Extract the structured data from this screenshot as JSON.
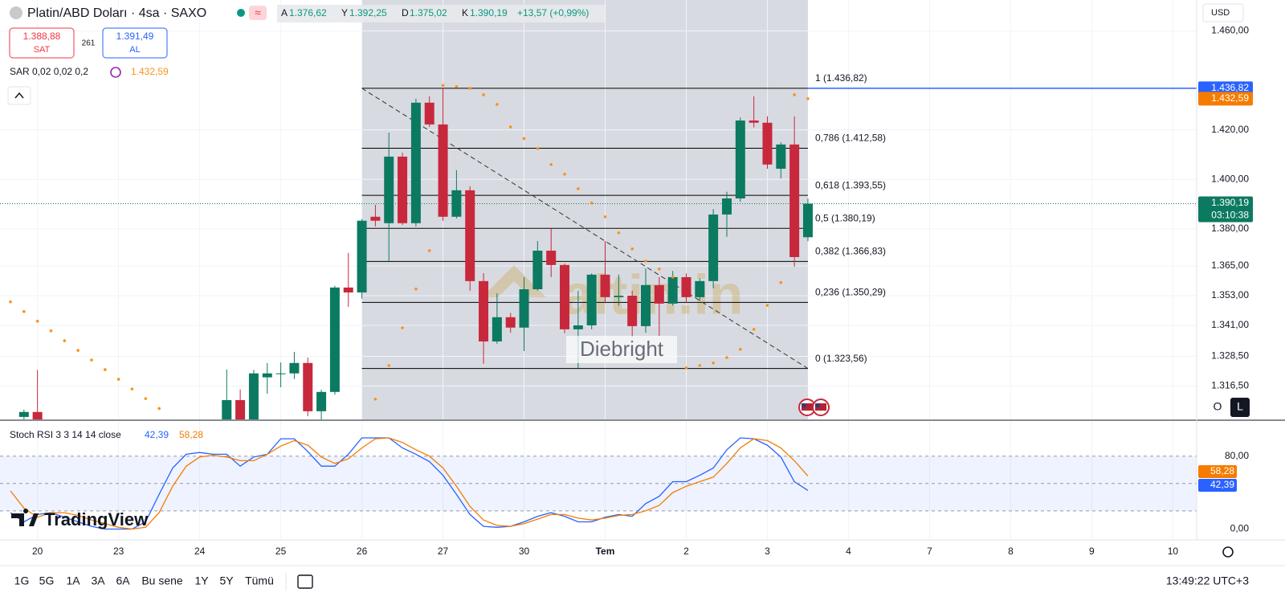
{
  "header": {
    "title": "Platin/ABD Doları · 4sa · SAXO",
    "ohlc": [
      {
        "key": "A",
        "value": "1.376,62"
      },
      {
        "key": "Y",
        "value": "1.392,25"
      },
      {
        "key": "D",
        "value": "1.375,02"
      },
      {
        "key": "K",
        "value": "1.390,19"
      }
    ],
    "change": "+13,57 (+0,99%)",
    "sell_price": "1.388,88",
    "sell_label": "SAT",
    "spread": "261",
    "buy_price": "1.391,49",
    "buy_label": "AL",
    "sar_title": "SAR 0,02 0,02 0,2",
    "sar_value": "1.432,59",
    "currency": "USD",
    "watermark": "altin.in",
    "author": "Diebright",
    "logo": "TradingView",
    "buttons": [
      "O",
      "L"
    ]
  },
  "toolbar": {
    "ranges": [
      "1G",
      "5G",
      "1A",
      "3A",
      "6A",
      "Bu sene",
      "1Y",
      "5Y",
      "Tümü"
    ],
    "time": "13:49:22 UTC+3"
  },
  "chart_data": [
    {
      "type": "candlestick",
      "colors": {
        "up": "#0c7a60",
        "down": "#c8283c"
      },
      "x": [
        1,
        2,
        16,
        17,
        18,
        19,
        20,
        21,
        22,
        23,
        24,
        25,
        26,
        27,
        28,
        29,
        30,
        31,
        32,
        33,
        34,
        35,
        36,
        37,
        38,
        39,
        40,
        41,
        42,
        43,
        44,
        45,
        46,
        47,
        48,
        49,
        50,
        51,
        52,
        53,
        54,
        55,
        56,
        57,
        58,
        59
      ],
      "open": [
        1304,
        1306,
        1300,
        1310.8,
        1303,
        1320,
        1321.3,
        1321.6,
        1325.8,
        1306.3,
        1314.1,
        1356.3,
        1354.3,
        1384.9,
        1382.3,
        1409.2,
        1382.3,
        1431,
        1422.2,
        1384.9,
        1395.6,
        1358.9,
        1334.5,
        1344.3,
        1340.1,
        1355.6,
        1371.2,
        1365.4,
        1339.4,
        1341,
        1361.5,
        1352.4,
        1353,
        1340.7,
        1357.3,
        1349.8,
        1360.5,
        1352.4,
        1358.9,
        1385.8,
        1392.3,
        1423.8,
        1422.9,
        1404.3,
        1414.1,
        1376.62
      ],
      "high": [
        1307,
        1323,
        1323.2,
        1315.1,
        1323,
        1325.8,
        1326,
        1330.3,
        1328,
        1315,
        1357,
        1370.3,
        1384,
        1389.7,
        1418.9,
        1410.8,
        1432.6,
        1433.6,
        1436.8,
        1403.7,
        1397.2,
        1362.1,
        1354,
        1346,
        1360.5,
        1375.1,
        1380,
        1366,
        1355,
        1362,
        1375.1,
        1361.5,
        1355,
        1364,
        1360.5,
        1363,
        1362,
        1360,
        1388,
        1395,
        1425,
        1433.6,
        1425.5,
        1415,
        1425.5,
        1392.25
      ],
      "low": [
        1300,
        1300,
        1298,
        1298,
        1301,
        1313.4,
        1316,
        1319.3,
        1304.3,
        1303,
        1313,
        1348.5,
        1351.8,
        1381,
        1367,
        1381.6,
        1381,
        1421.2,
        1383.3,
        1384.2,
        1355,
        1325.5,
        1333.6,
        1338,
        1330.6,
        1355,
        1360.5,
        1337.8,
        1323.8,
        1339.4,
        1350,
        1349,
        1336.2,
        1338,
        1336.8,
        1349,
        1350,
        1351,
        1356,
        1376.8,
        1391,
        1421,
        1404.3,
        1400.4,
        1364.7,
        1375.02
      ],
      "close": [
        1306,
        1302,
        1310.8,
        1302,
        1321.6,
        1321.6,
        1321.6,
        1325.8,
        1306.3,
        1314.1,
        1356.3,
        1354.3,
        1383.3,
        1383.3,
        1409.2,
        1382.3,
        1431,
        1422.2,
        1384.9,
        1395.6,
        1358.9,
        1334.5,
        1344.3,
        1340.1,
        1355.6,
        1371.2,
        1365.4,
        1339.4,
        1341,
        1361.5,
        1352.4,
        1353,
        1340.7,
        1357.3,
        1349.8,
        1360.5,
        1352.4,
        1358.9,
        1385.8,
        1392.3,
        1423.8,
        1422.9,
        1406,
        1414.1,
        1368.6,
        1390.19
      ],
      "xlim": [
        -0.7724,
        87.76
      ],
      "ylim": [
        1303,
        1472.5
      ],
      "xticks": [
        {
          "value": 2,
          "label": "20"
        },
        {
          "value": 8,
          "label": "23"
        },
        {
          "value": 14,
          "label": "24"
        },
        {
          "value": 20,
          "label": "25"
        },
        {
          "value": 26,
          "label": "26"
        },
        {
          "value": 32,
          "label": "27"
        },
        {
          "value": 38,
          "label": "30"
        },
        {
          "value": 44,
          "label": "Tem"
        },
        {
          "value": 50,
          "label": "2"
        },
        {
          "value": 56,
          "label": "3"
        },
        {
          "value": 62,
          "label": "4"
        },
        {
          "value": 68,
          "label": "7"
        },
        {
          "value": 74,
          "label": "8"
        },
        {
          "value": 80,
          "label": "9"
        },
        {
          "value": 86,
          "label": "10"
        }
      ],
      "yticks": [
        {
          "value": 1460,
          "label": "1.460,00"
        },
        {
          "value": 1420,
          "label": "1.420,00"
        },
        {
          "value": 1400,
          "label": "1.400,00"
        },
        {
          "value": 1380,
          "label": "1.380,00"
        },
        {
          "value": 1365,
          "label": "1.365,00"
        },
        {
          "value": 1353,
          "label": "1.353,00"
        },
        {
          "value": 1341,
          "label": "1.341,00"
        },
        {
          "value": 1328.5,
          "label": "1.328,50"
        },
        {
          "value": 1316.5,
          "label": "1.316,50"
        }
      ],
      "grid": true,
      "sar": {
        "color": "#f7931a",
        "x": [
          0,
          1,
          2,
          3,
          4,
          5,
          6,
          7,
          8,
          9,
          10,
          11,
          27,
          28,
          29,
          30,
          31,
          32,
          33,
          34,
          35,
          36,
          37,
          38,
          39,
          40,
          41,
          42,
          43,
          44,
          45,
          46,
          47,
          48,
          49,
          50,
          51,
          52,
          53,
          54,
          55,
          56,
          57,
          58,
          59
        ],
        "values": [
          1350.5,
          1346.6,
          1342.7,
          1338.8,
          1334.8,
          1330.9,
          1327,
          1323.1,
          1319.2,
          1315.3,
          1311.4,
          1307.4,
          1311.2,
          1324.8,
          1340,
          1355.7,
          1371.2,
          1438,
          1437.5,
          1436.8,
          1434.2,
          1430.3,
          1421.2,
          1416.5,
          1412.5,
          1406,
          1402.1,
          1396.2,
          1390.5,
          1384.9,
          1378.4,
          1371.9,
          1367,
          1363.8,
          1360.5,
          1323.8,
          1324.8,
          1325.8,
          1328,
          1331.3,
          1339.4,
          1349.1,
          1358.3,
          1434.2,
          1432.59
        ]
      },
      "fib": {
        "x": [
          26,
          59
        ],
        "color": "#000000",
        "levels": [
          {
            "value": 1436.82,
            "label": "1 (1.436,82)"
          },
          {
            "value": 1412.58,
            "label": "0,786 (1.412,58)"
          },
          {
            "value": 1393.55,
            "label": "0,618 (1.393,55)"
          },
          {
            "value": 1380.19,
            "label": "0,5 (1.380,19)"
          },
          {
            "value": 1366.83,
            "label": "0,382 (1.366,83)"
          },
          {
            "value": 1350.29,
            "label": "0,236 (1.350,29)"
          },
          {
            "value": 1323.56,
            "label": "0 (1.323,56)"
          }
        ]
      },
      "price_labels": [
        {
          "value": 1436.82,
          "label": "1.436,82",
          "color": "#2962ff"
        },
        {
          "value": 1432.59,
          "label": "1.432,59",
          "color": "#f57c00"
        },
        {
          "value": 1390.19,
          "label": "1.390,19",
          "color": "#0c7a60",
          "countdown": "03:10:38"
        }
      ]
    },
    {
      "type": "line",
      "title": "Stoch RSI 3 3 14 14 close",
      "xlim": [
        -0.7724,
        87.76
      ],
      "ylim": [
        -11.85,
        118.5
      ],
      "yticks": [
        {
          "value": 80,
          "label": "80,00"
        },
        {
          "value": 0,
          "label": "0,00"
        }
      ],
      "band": [
        20,
        80
      ],
      "midline": 50,
      "x": [
        0,
        1,
        2,
        3,
        4,
        5,
        6,
        7,
        8,
        9,
        10,
        11,
        12,
        13,
        14,
        15,
        16,
        17,
        18,
        19,
        20,
        21,
        22,
        23,
        24,
        25,
        26,
        27,
        28,
        29,
        30,
        31,
        32,
        33,
        34,
        35,
        36,
        37,
        38,
        39,
        40,
        41,
        42,
        43,
        44,
        45,
        46,
        47,
        48,
        49,
        50,
        51,
        52,
        53,
        54,
        55,
        56,
        57,
        58,
        59
      ],
      "series": [
        {
          "color": "#2962ff",
          "last_label": "42,39",
          "values": [
            18,
            8,
            16,
            18,
            13,
            8,
            3,
            0,
            0,
            0,
            8,
            38,
            67,
            82,
            84,
            82,
            82,
            69,
            79,
            82,
            99,
            99,
            85,
            69,
            69,
            82,
            100,
            100,
            100,
            89,
            82,
            74,
            59,
            38,
            16,
            3,
            2,
            3,
            8,
            14,
            18,
            14,
            8,
            8,
            13,
            16,
            14,
            28,
            36,
            52,
            52,
            59,
            67,
            87,
            100,
            99,
            92,
            79,
            52,
            42.39
          ]
        },
        {
          "color": "#f57c00",
          "last_label": "58,28",
          "values": [
            42,
            23,
            13,
            18,
            18,
            15,
            10,
            6,
            2,
            0,
            2,
            18,
            47,
            69,
            79,
            81,
            79,
            75,
            75,
            82,
            91,
            97,
            92,
            79,
            72,
            77,
            89,
            99,
            100,
            95,
            87,
            80,
            67,
            47,
            25,
            10,
            4,
            3,
            6,
            11,
            16,
            16,
            12,
            10,
            12,
            15,
            16,
            20,
            26,
            40,
            47,
            52,
            57,
            72,
            89,
            99,
            97,
            89,
            75,
            58.28
          ]
        }
      ]
    }
  ]
}
